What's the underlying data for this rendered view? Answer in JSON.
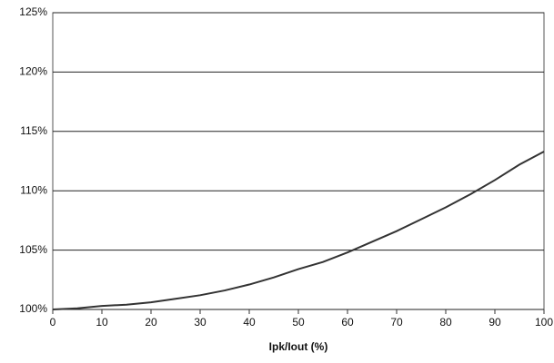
{
  "chart_data": {
    "type": "line",
    "x_label": "Ipk/Iout (%)",
    "x": [
      0,
      5,
      10,
      15,
      20,
      25,
      30,
      35,
      40,
      45,
      50,
      55,
      60,
      65,
      70,
      75,
      80,
      85,
      90,
      95,
      100
    ],
    "series": [
      {
        "color": "#333333",
        "values": [
          100,
          100.1,
          100.3,
          100.4,
          100.6,
          100.9,
          101.2,
          101.6,
          102.1,
          102.7,
          103.4,
          104.0,
          104.8,
          105.7,
          106.6,
          107.6,
          108.6,
          109.7,
          110.9,
          112.2,
          113.3
        ]
      }
    ],
    "xlim": [
      0,
      100
    ],
    "xticks": [
      0,
      10,
      20,
      30,
      40,
      50,
      60,
      70,
      80,
      90,
      100
    ],
    "ylim": [
      100,
      125
    ],
    "yticks": [
      {
        "value": 100,
        "label": "100%"
      },
      {
        "value": 105,
        "label": "105%"
      },
      {
        "value": 110,
        "label": "110%"
      },
      {
        "value": 115,
        "label": "115%"
      },
      {
        "value": 120,
        "label": "120%"
      },
      {
        "value": 125,
        "label": "125%"
      }
    ],
    "grid": true
  }
}
